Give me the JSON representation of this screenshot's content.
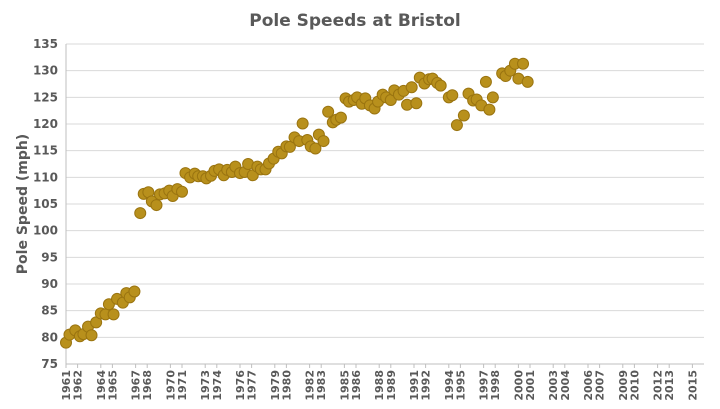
{
  "chart_data": {
    "type": "scatter",
    "title": "Pole Speeds at Bristol",
    "xlabel": "",
    "ylabel": "Pole Speed (mph)",
    "xlim": [
      1961,
      2016
    ],
    "ylim": [
      75,
      135
    ],
    "yticks": [
      75,
      80,
      85,
      90,
      95,
      100,
      105,
      110,
      115,
      120,
      125,
      130,
      135
    ],
    "xticks": [
      1961,
      1962,
      1964,
      1965,
      1967,
      1968,
      1970,
      1971,
      1973,
      1974,
      1976,
      1977,
      1979,
      1980,
      1982,
      1983,
      1985,
      1986,
      1988,
      1989,
      1991,
      1992,
      1994,
      1995,
      1997,
      1998,
      2000,
      2001,
      2003,
      2004,
      2006,
      2007,
      2009,
      2010,
      2012,
      2013,
      2015
    ],
    "grid": "horizontal",
    "point_color": "#b8901c",
    "series": [
      {
        "points": [
          [
            1961.0,
            79.0
          ],
          [
            1961.3,
            80.5
          ],
          [
            1961.8,
            81.3
          ],
          [
            1962.2,
            80.2
          ],
          [
            1962.5,
            80.6
          ],
          [
            1962.9,
            82.0
          ],
          [
            1963.2,
            80.4
          ],
          [
            1963.6,
            82.8
          ],
          [
            1964.0,
            84.5
          ],
          [
            1964.4,
            84.3
          ],
          [
            1964.7,
            86.2
          ],
          [
            1965.1,
            84.3
          ],
          [
            1965.4,
            87.2
          ],
          [
            1965.9,
            86.5
          ],
          [
            1966.2,
            88.3
          ],
          [
            1966.5,
            87.5
          ],
          [
            1966.9,
            88.6
          ],
          [
            1967.4,
            103.3
          ],
          [
            1967.7,
            106.9
          ],
          [
            1968.1,
            107.2
          ],
          [
            1968.4,
            105.5
          ],
          [
            1968.8,
            104.8
          ],
          [
            1969.1,
            106.8
          ],
          [
            1969.5,
            107.0
          ],
          [
            1969.9,
            107.5
          ],
          [
            1970.2,
            106.5
          ],
          [
            1970.6,
            107.8
          ],
          [
            1971.0,
            107.3
          ],
          [
            1971.3,
            110.8
          ],
          [
            1971.7,
            110.0
          ],
          [
            1972.1,
            110.7
          ],
          [
            1972.4,
            110.2
          ],
          [
            1972.8,
            110.2
          ],
          [
            1973.1,
            109.8
          ],
          [
            1973.5,
            110.3
          ],
          [
            1973.8,
            111.2
          ],
          [
            1974.2,
            111.5
          ],
          [
            1974.6,
            110.4
          ],
          [
            1974.9,
            111.4
          ],
          [
            1975.3,
            111.0
          ],
          [
            1975.6,
            112.0
          ],
          [
            1976.0,
            110.8
          ],
          [
            1976.4,
            111.0
          ],
          [
            1976.7,
            112.5
          ],
          [
            1977.1,
            110.4
          ],
          [
            1977.5,
            112.0
          ],
          [
            1977.8,
            111.5
          ],
          [
            1978.2,
            111.5
          ],
          [
            1978.5,
            112.6
          ],
          [
            1978.9,
            113.5
          ],
          [
            1979.3,
            114.8
          ],
          [
            1979.6,
            114.5
          ],
          [
            1980.0,
            115.8
          ],
          [
            1980.3,
            115.7
          ],
          [
            1980.7,
            117.5
          ],
          [
            1981.1,
            116.8
          ],
          [
            1981.4,
            120.1
          ],
          [
            1981.8,
            117.0
          ],
          [
            1982.1,
            115.8
          ],
          [
            1982.5,
            115.4
          ],
          [
            1982.8,
            118.0
          ],
          [
            1983.2,
            116.8
          ],
          [
            1983.6,
            122.3
          ],
          [
            1984.0,
            120.3
          ],
          [
            1984.3,
            120.8
          ],
          [
            1984.7,
            121.2
          ],
          [
            1985.1,
            124.8
          ],
          [
            1985.4,
            124.2
          ],
          [
            1985.8,
            124.5
          ],
          [
            1986.1,
            125.0
          ],
          [
            1986.5,
            123.8
          ],
          [
            1986.8,
            124.8
          ],
          [
            1987.2,
            123.5
          ],
          [
            1987.6,
            122.9
          ],
          [
            1987.9,
            124.2
          ],
          [
            1988.3,
            125.5
          ],
          [
            1988.6,
            125.0
          ],
          [
            1989.0,
            124.5
          ],
          [
            1989.3,
            126.3
          ],
          [
            1989.7,
            125.5
          ],
          [
            1990.1,
            126.2
          ],
          [
            1990.4,
            123.6
          ],
          [
            1990.8,
            126.9
          ],
          [
            1991.2,
            123.9
          ],
          [
            1991.5,
            128.7
          ],
          [
            1991.9,
            127.6
          ],
          [
            1992.3,
            128.4
          ],
          [
            1992.6,
            128.5
          ],
          [
            1993.0,
            127.7
          ],
          [
            1993.3,
            127.2
          ],
          [
            1994.0,
            125.0
          ],
          [
            1994.3,
            125.4
          ],
          [
            1994.7,
            119.8
          ],
          [
            1995.3,
            121.6
          ],
          [
            1995.7,
            125.7
          ],
          [
            1996.1,
            124.4
          ],
          [
            1996.4,
            124.6
          ],
          [
            1996.8,
            123.5
          ],
          [
            1997.2,
            127.9
          ],
          [
            1997.5,
            122.7
          ],
          [
            1997.8,
            125.0
          ],
          [
            1998.6,
            129.5
          ],
          [
            1998.9,
            129.0
          ],
          [
            1999.3,
            130.0
          ],
          [
            1999.7,
            131.3
          ],
          [
            2000.0,
            128.5
          ],
          [
            2000.4,
            131.3
          ],
          [
            2000.8,
            127.9
          ]
        ]
      }
    ]
  }
}
